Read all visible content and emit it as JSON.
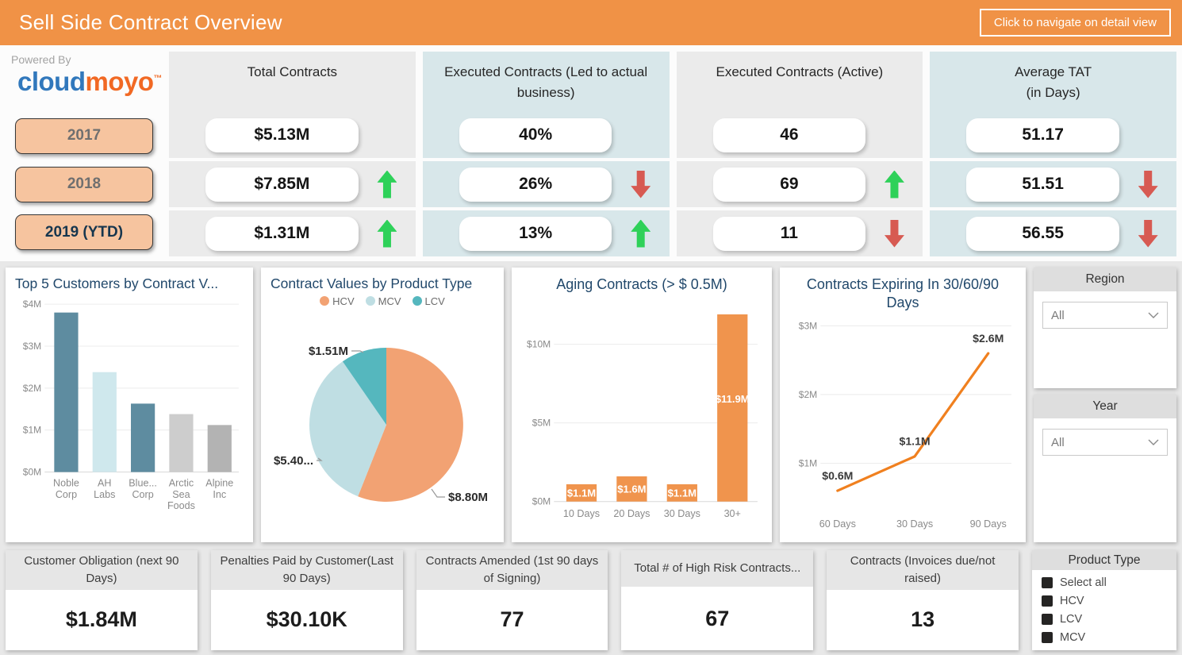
{
  "header": {
    "title": "Sell Side Contract Overview",
    "nav_button_label": "Click to navigate on detail view"
  },
  "branding": {
    "powered_by": "Powered By",
    "brand_part1": "cloud",
    "brand_part2": "moyo",
    "trademark": "™"
  },
  "year_buttons": [
    "2017",
    "2018",
    "2019 (YTD)"
  ],
  "kpi_table": {
    "columns": [
      {
        "title": "Total Contracts",
        "subtitle": "",
        "tint": "gray",
        "rows": [
          {
            "value": "$5.13M",
            "arrow": "none"
          },
          {
            "value": "$7.85M",
            "arrow": "up"
          },
          {
            "value": "$1.31M",
            "arrow": "up"
          }
        ]
      },
      {
        "title": "Executed Contracts (Led to actual business)",
        "subtitle": "",
        "tint": "blue",
        "rows": [
          {
            "value": "40%",
            "arrow": "none"
          },
          {
            "value": "26%",
            "arrow": "down"
          },
          {
            "value": "13%",
            "arrow": "up"
          }
        ]
      },
      {
        "title": "Executed Contracts  (Active)",
        "subtitle": "",
        "tint": "gray",
        "rows": [
          {
            "value": "46",
            "arrow": "none"
          },
          {
            "value": "69",
            "arrow": "up"
          },
          {
            "value": "11",
            "arrow": "down"
          }
        ]
      },
      {
        "title": "Average TAT",
        "subtitle": "(in Days)",
        "tint": "blue",
        "rows": [
          {
            "value": "51.17",
            "arrow": "none"
          },
          {
            "value": "51.51",
            "arrow": "down"
          },
          {
            "value": "56.55",
            "arrow": "down"
          }
        ]
      }
    ]
  },
  "chart_data": [
    {
      "type": "bar",
      "title": "Top 5 Customers by Contract V...",
      "categories": [
        "Noble Corp",
        "AH Labs",
        "Blue... Corp",
        "Arctic Sea Foods",
        "Alpine Inc"
      ],
      "values": [
        3.8,
        2.38,
        1.63,
        1.38,
        1.12
      ],
      "unit": "USD millions",
      "xlabel": "",
      "ylabel": "",
      "ylim": [
        0,
        4
      ],
      "yticks": [
        "$0M",
        "$1M",
        "$2M",
        "$3M",
        "$4M"
      ],
      "grid": true,
      "colors": [
        "#5E8CA0",
        "#CFE8ED",
        "#5E8CA0",
        "#CDCDCD",
        "#B3B3B3"
      ]
    },
    {
      "type": "pie",
      "title": "Contract Values by Product Type",
      "legend": [
        "HCV",
        "MCV",
        "LCV"
      ],
      "legend_position": "top",
      "values": [
        8.8,
        5.4,
        1.51
      ],
      "labels": [
        "$8.80M",
        "$5.40...",
        "$1.51M"
      ],
      "colors": [
        "#F2A273",
        "#BFDEE3",
        "#55B7BE"
      ]
    },
    {
      "type": "bar",
      "title": "Aging Contracts (> $ 0.5M)",
      "categories": [
        "10 Days",
        "20 Days",
        "30 Days",
        "30+"
      ],
      "values": [
        1.1,
        1.6,
        1.1,
        11.9
      ],
      "labels": [
        "$1.1M",
        "$1.6M",
        "$1.1M",
        "$11.9M"
      ],
      "unit": "USD millions",
      "ylim": [
        0,
        12.5
      ],
      "yticks": [
        "$0M",
        "$5M",
        "$10M"
      ],
      "grid": true,
      "color": "#F0944D"
    },
    {
      "type": "line",
      "title": "Contracts Expiring In 30/60/90 Days",
      "categories": [
        "60 Days",
        "30 Days",
        "90 Days"
      ],
      "values": [
        0.6,
        1.1,
        2.6
      ],
      "labels": [
        "$0.6M",
        "$1.1M",
        "$2.6M"
      ],
      "unit": "USD millions",
      "ylim": [
        0.35,
        3.05
      ],
      "yticks": [
        1,
        2,
        3
      ],
      "ytick_labels": [
        "$1M",
        "$2M",
        "$3M"
      ],
      "grid": true,
      "color": "#F0801F"
    }
  ],
  "filters": {
    "region": {
      "label": "Region",
      "value": "All"
    },
    "year": {
      "label": "Year",
      "value": "All"
    },
    "product_type": {
      "label": "Product Type",
      "options": [
        {
          "label": "Select all",
          "checked": true
        },
        {
          "label": "HCV",
          "checked": true
        },
        {
          "label": "LCV",
          "checked": true
        },
        {
          "label": "MCV",
          "checked": true
        }
      ]
    }
  },
  "bottom_cards": [
    {
      "title": "Customer Obligation (next 90 Days)",
      "value": "$1.84M"
    },
    {
      "title": "Penalties Paid by Customer(Last 90 Days)",
      "value": "$30.10K"
    },
    {
      "title": "Contracts Amended (1st 90 days of Signing)",
      "value": "77"
    },
    {
      "title": "Total # of High Risk Contracts...",
      "value": "67"
    },
    {
      "title": "Contracts (Invoices due/not raised)",
      "value": "13"
    }
  ],
  "colors": {
    "header_orange": "#F09246",
    "column_gray": "#EBEBEB",
    "column_blue": "#D8E7EA",
    "up_arrow_green": "#2ED159",
    "down_arrow_red": "#D75A52",
    "year_button_fill": "#F6C49F",
    "brand_blue": "#3178BC",
    "brand_orange": "#F16924",
    "chart_title_navy": "#21486B"
  }
}
